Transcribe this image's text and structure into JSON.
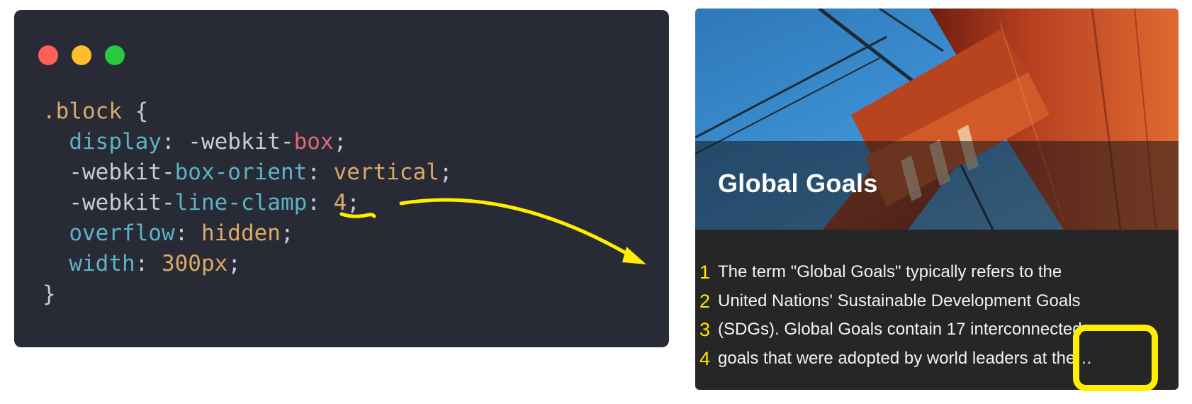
{
  "code_window": {
    "lines": [
      [
        {
          "t": ".block",
          "c": "sel"
        },
        {
          "t": " {",
          "c": "punc"
        }
      ],
      [
        {
          "t": "  display",
          "c": "prop"
        },
        {
          "t": ": ",
          "c": "punc"
        },
        {
          "t": "-webkit-",
          "c": "punc"
        },
        {
          "t": "box",
          "c": "key"
        },
        {
          "t": ";",
          "c": "punc"
        }
      ],
      [
        {
          "t": "  -webkit-",
          "c": "punc"
        },
        {
          "t": "box-orient",
          "c": "prop"
        },
        {
          "t": ": ",
          "c": "punc"
        },
        {
          "t": "vertical",
          "c": "val"
        },
        {
          "t": ";",
          "c": "punc"
        }
      ],
      [
        {
          "t": "  -webkit-",
          "c": "punc"
        },
        {
          "t": "line-clamp",
          "c": "prop"
        },
        {
          "t": ": ",
          "c": "punc"
        },
        {
          "t": "4",
          "c": "val"
        },
        {
          "t": ";",
          "c": "punc"
        }
      ],
      [
        {
          "t": "  overflow",
          "c": "prop"
        },
        {
          "t": ": ",
          "c": "punc"
        },
        {
          "t": "hidden",
          "c": "val"
        },
        {
          "t": ";",
          "c": "punc"
        }
      ],
      [
        {
          "t": "  width",
          "c": "prop"
        },
        {
          "t": ": ",
          "c": "punc"
        },
        {
          "t": "300px",
          "c": "val"
        },
        {
          "t": ";",
          "c": "punc"
        }
      ],
      [
        {
          "t": "}",
          "c": "punc"
        }
      ]
    ],
    "colors": {
      "background": "#282b35",
      "selector": "#d9a96a",
      "property": "#5db3c4",
      "value": "#d9a96a",
      "keyword": "#e0687a",
      "punctuation": "#c7cbd3"
    },
    "traffic_lights": [
      "#fe5f57",
      "#febc2e",
      "#28c840"
    ]
  },
  "card": {
    "title": "Global Goals",
    "body_lines": [
      "The term \"Global Goals\" typically refers to the",
      "United Nations' Sustainable Development Goals",
      "(SDGs). Global Goals contain 17 interconnected",
      "goals that were adopted by world leaders at the…"
    ],
    "image_icon": "bridge-tower-photo"
  },
  "annotations": {
    "line_numbers": [
      "1",
      "2",
      "3",
      "4"
    ],
    "color": "#ffee00"
  }
}
